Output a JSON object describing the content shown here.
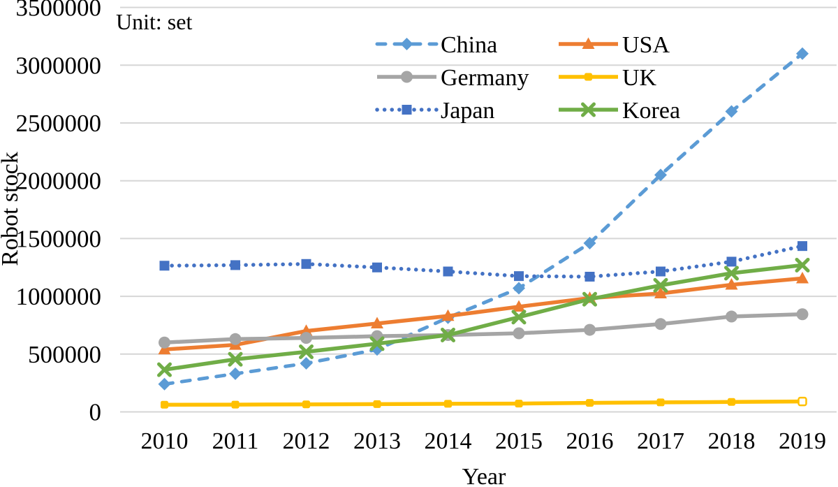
{
  "chart_data": {
    "type": "line",
    "title": "",
    "unit_label": "Unit: set",
    "xlabel": "Year",
    "ylabel": "Robot stock",
    "categories": [
      "2010",
      "2011",
      "2012",
      "2013",
      "2014",
      "2015",
      "2016",
      "2017",
      "2018",
      "2019"
    ],
    "ylim": [
      0,
      3500000
    ],
    "yticks": [
      0,
      500000,
      1000000,
      1500000,
      2000000,
      2500000,
      3000000,
      3500000
    ],
    "grid": "horizontal",
    "gridline_color": "#d6d6d6",
    "text_color": "#000000",
    "legend": {
      "position": "top-center",
      "columns": 2,
      "rows": [
        [
          "China",
          "USA"
        ],
        [
          "Germany",
          "UK"
        ],
        [
          "Japan",
          "Korea"
        ]
      ]
    },
    "series": [
      {
        "name": "China",
        "color": "#5B9BD5",
        "line": "dashed",
        "marker": "diamond",
        "values": [
          240000,
          330000,
          420000,
          540000,
          815000,
          1070000,
          1460000,
          2050000,
          2600000,
          3100000
        ]
      },
      {
        "name": "USA",
        "color": "#ED7D31",
        "line": "solid",
        "marker": "triangle",
        "values": [
          540000,
          580000,
          700000,
          765000,
          830000,
          910000,
          985000,
          1025000,
          1100000,
          1155000
        ]
      },
      {
        "name": "Germany",
        "color": "#A5A5A5",
        "line": "solid",
        "marker": "circle",
        "values": [
          600000,
          630000,
          640000,
          655000,
          665000,
          680000,
          710000,
          760000,
          825000,
          845000
        ]
      },
      {
        "name": "UK",
        "color": "#FFC000",
        "line": "solid",
        "marker": "square-small",
        "last_marker_hollow": true,
        "values": [
          62000,
          63000,
          65000,
          67000,
          70000,
          72000,
          78000,
          82000,
          86000,
          90000
        ]
      },
      {
        "name": "Japan",
        "color": "#4472C4",
        "line": "dotted",
        "marker": "square",
        "values": [
          1265000,
          1270000,
          1280000,
          1250000,
          1215000,
          1175000,
          1170000,
          1215000,
          1300000,
          1435000
        ]
      },
      {
        "name": "Korea",
        "color": "#70AD47",
        "line": "solid",
        "marker": "x",
        "values": [
          365000,
          455000,
          520000,
          590000,
          665000,
          820000,
          975000,
          1095000,
          1200000,
          1270000
        ]
      }
    ]
  }
}
